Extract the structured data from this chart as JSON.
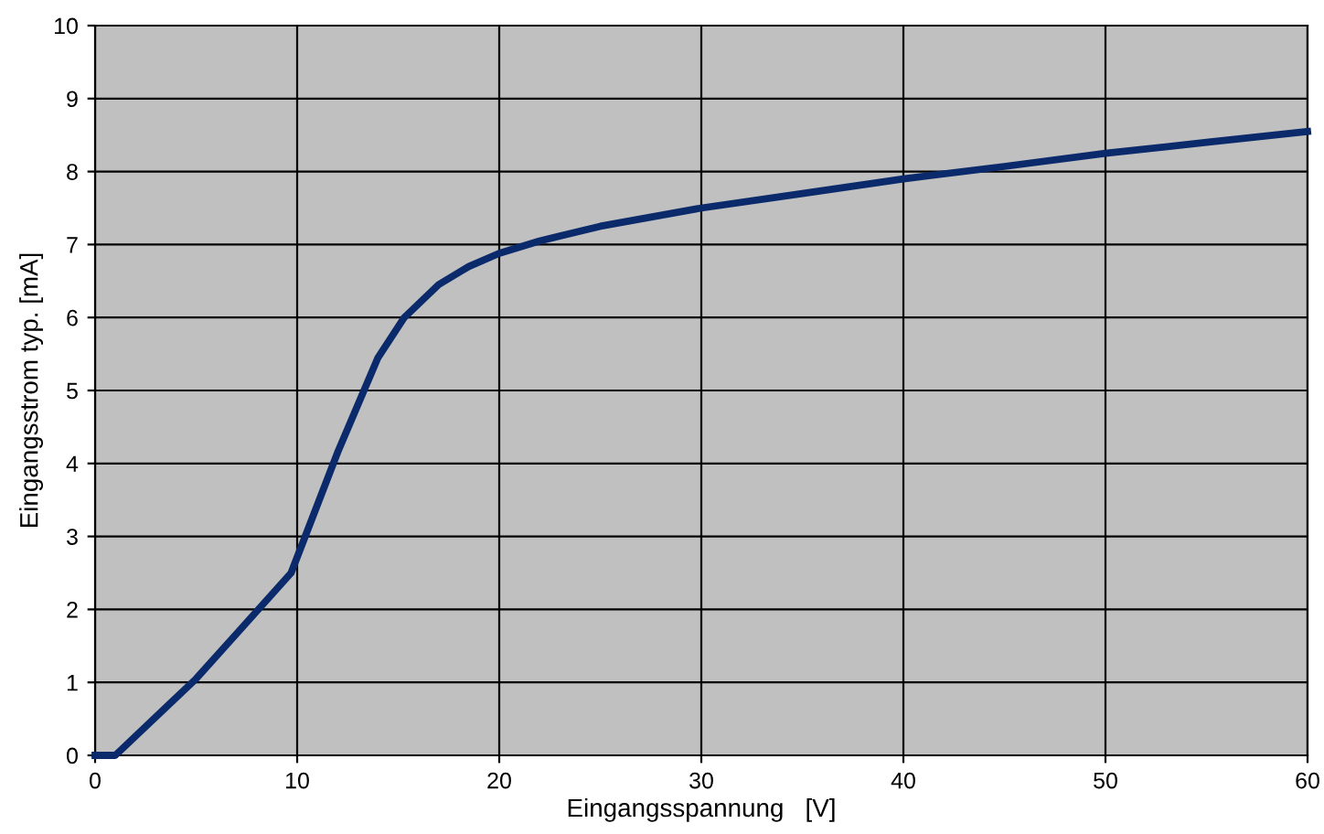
{
  "chart_data": {
    "type": "line",
    "xlabel": "Eingangsspannung   [V]",
    "ylabel": "Eingangsstrom typ. [mA]",
    "series": [
      {
        "color": "#0b2a6b",
        "x": [
          0,
          1,
          5,
          9.7,
          12,
          14,
          15.3,
          17,
          18.5,
          20,
          22,
          25,
          30,
          35,
          40,
          45,
          50,
          55,
          60
        ],
        "values": [
          0,
          0,
          1.05,
          2.5,
          4.15,
          5.45,
          6.0,
          6.45,
          6.7,
          6.88,
          7.05,
          7.25,
          7.5,
          7.7,
          7.9,
          8.07,
          8.25,
          8.4,
          8.55
        ]
      }
    ],
    "xlim": [
      0,
      60
    ],
    "xticks": [
      0,
      10,
      20,
      30,
      40,
      50,
      60
    ],
    "ylim": [
      0,
      10
    ],
    "yticks": [
      0,
      1,
      2,
      3,
      4,
      5,
      6,
      7,
      8,
      9,
      10
    ],
    "grid": true,
    "legend": false,
    "marker": "none",
    "line_style": "solid"
  }
}
